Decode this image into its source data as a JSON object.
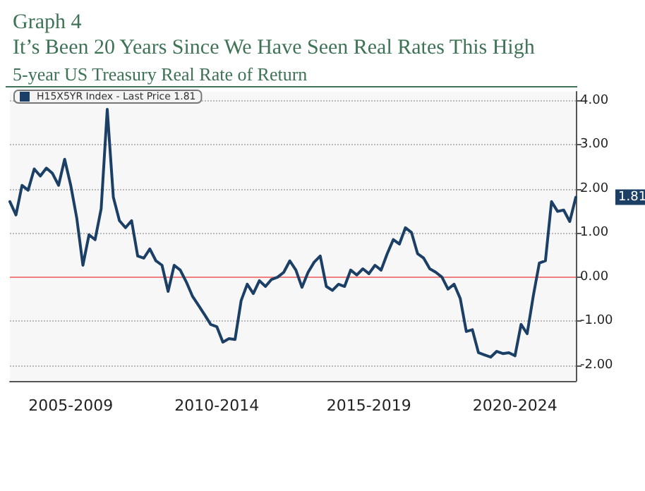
{
  "chart_data": {
    "type": "line",
    "title": "Graph 4\nIt’s Been 20 Years Since We Have Seen Real Rates This High",
    "subtitle": "5-year US Treasury Real Rate of Return",
    "categories": [
      null,
      null,
      null,
      null,
      null,
      null,
      null,
      null,
      null,
      null,
      "2005-2009",
      null,
      null,
      null,
      null,
      null,
      null,
      null,
      null,
      null,
      null,
      null,
      null,
      null,
      null,
      null,
      null,
      null,
      null,
      null,
      null,
      null,
      null,
      null,
      "2010-2014",
      null,
      null,
      null,
      null,
      null,
      null,
      null,
      null,
      null,
      null,
      null,
      null,
      null,
      null,
      null,
      null,
      null,
      null,
      null,
      null,
      null,
      null,
      null,
      null,
      "2015-2019",
      null,
      null,
      null,
      null,
      null,
      null,
      null,
      null,
      null,
      null,
      null,
      null,
      null,
      null,
      null,
      null,
      null,
      null,
      null,
      null,
      null,
      null,
      null,
      "2020-2024",
      null,
      null,
      null,
      null,
      null,
      null,
      null,
      null,
      null,
      null
    ],
    "series": [
      {
        "name": "H15X5YR Index - Last Price 1.81",
        "color": "#1c3f66",
        "values": [
          1.71,
          1.41,
          2.08,
          1.97,
          2.45,
          2.29,
          2.47,
          2.35,
          2.08,
          2.67,
          2.08,
          1.33,
          0.27,
          0.96,
          0.85,
          1.55,
          3.8,
          1.81,
          1.28,
          1.12,
          1.28,
          0.48,
          0.43,
          0.64,
          0.37,
          0.27,
          -0.32,
          0.27,
          0.16,
          -0.11,
          -0.43,
          -0.64,
          -0.85,
          -1.07,
          -1.12,
          -1.47,
          -1.39,
          -1.41,
          -0.53,
          -0.16,
          -0.37,
          -0.08,
          -0.21,
          -0.05,
          0.0,
          0.11,
          0.37,
          0.16,
          -0.23,
          0.11,
          0.34,
          0.48,
          -0.21,
          -0.3,
          -0.16,
          -0.21,
          0.16,
          0.05,
          0.19,
          0.08,
          0.27,
          0.16,
          0.53,
          0.85,
          0.75,
          1.12,
          1.01,
          0.53,
          0.43,
          0.19,
          0.11,
          0.0,
          -0.27,
          -0.16,
          -0.48,
          -1.23,
          -1.19,
          -1.71,
          -1.76,
          -1.81,
          -1.68,
          -1.73,
          -1.71,
          -1.78,
          -1.07,
          -1.28,
          -0.43,
          0.32,
          0.37,
          1.71,
          1.49,
          1.52,
          1.26,
          1.81
        ]
      }
    ],
    "ylim": [
      -2.35,
      4.2
    ],
    "yticks": [
      {
        "value": -2,
        "label": "-2.00"
      },
      {
        "value": -1,
        "label": "-1.00"
      },
      {
        "value": 0,
        "label": "0.00"
      },
      {
        "value": 1,
        "label": "1.00"
      },
      {
        "value": 2,
        "label": "2.00"
      },
      {
        "value": 3,
        "label": "3.00"
      },
      {
        "value": 4,
        "label": "4.00"
      }
    ],
    "ref_lines": [
      {
        "axis": "y",
        "value": 0,
        "color": "#f08080"
      }
    ],
    "annotations": [
      "1.81"
    ],
    "grid": "y",
    "legend": "top left",
    "marker": "none",
    "line_style": "solid"
  }
}
